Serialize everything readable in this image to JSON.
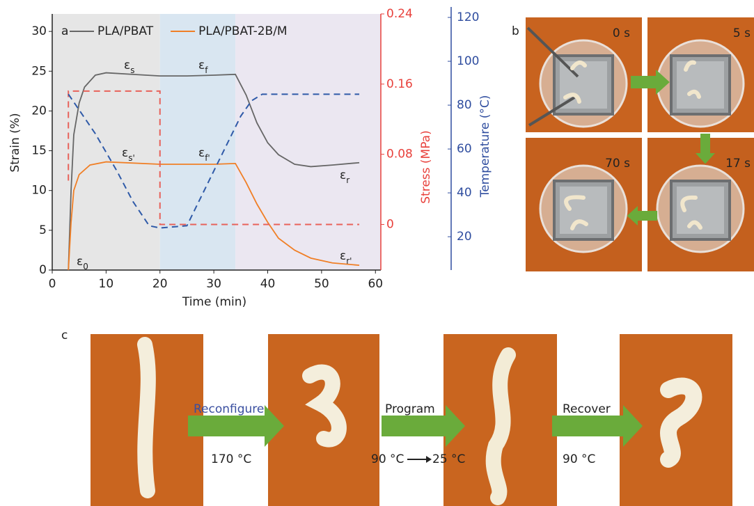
{
  "chart_data": {
    "type": "line",
    "panel_label": "a",
    "x_label": "Time (min)",
    "y_label": "Strain (%)",
    "y2_label": "Stress (MPa)",
    "y3_label": "Temperature (°C)",
    "xlim": [
      0,
      61
    ],
    "xticks": [
      0,
      10,
      20,
      30,
      40,
      50,
      60
    ],
    "ylim": [
      0,
      32.2
    ],
    "yticks": [
      0,
      5,
      10,
      15,
      20,
      25,
      30
    ],
    "y2lim": [
      -0.052,
      0.24
    ],
    "y2ticks": [
      0,
      0.08,
      0.16,
      0.24
    ],
    "y3lim": [
      4.8,
      121.6
    ],
    "y3ticks": [
      20,
      40,
      60,
      80,
      100,
      120
    ],
    "legend": "upper left",
    "regions": [
      {
        "start": 0,
        "end": 20,
        "color": "#e6e6e6"
      },
      {
        "start": 20,
        "end": 34,
        "color": "#d9e6f1"
      },
      {
        "start": 34,
        "end": 61,
        "color": "#ebe7f1"
      }
    ],
    "series": [
      {
        "name": "PLA/PBAT",
        "color": "#666666",
        "dash": false,
        "x": [
          3,
          3.5,
          4,
          5,
          6,
          8,
          10,
          15,
          20,
          25,
          30,
          34,
          36,
          38,
          40,
          42,
          45,
          48,
          52,
          57
        ],
        "values": [
          0,
          10,
          17,
          21,
          23,
          24.5,
          24.8,
          24.6,
          24.4,
          24.4,
          24.5,
          24.6,
          22,
          18.5,
          16,
          14.5,
          13.3,
          13,
          13.2,
          13.5
        ]
      },
      {
        "name": "PLA/PBAT-2B/M",
        "color": "#f07f26",
        "dash": false,
        "x": [
          3,
          3.5,
          4,
          5,
          7,
          10,
          20,
          30,
          34,
          36,
          38,
          40,
          42,
          45,
          48,
          52,
          57
        ],
        "values": [
          0,
          6,
          10,
          12,
          13.2,
          13.6,
          13.3,
          13.3,
          13.4,
          11,
          8.3,
          6,
          4,
          2.5,
          1.5,
          0.9,
          0.6
        ]
      },
      {
        "color": "#e8625a",
        "dash": true,
        "axis": "y2",
        "x": [
          3,
          3,
          20,
          20,
          57
        ],
        "values": [
          0.05,
          0.152,
          0.152,
          0,
          0
        ]
      },
      {
        "color": "#2f5aa8",
        "dash": true,
        "axis": "y3",
        "x": [
          3,
          8,
          12,
          15,
          18,
          20,
          25,
          28,
          32,
          35,
          37,
          39,
          57
        ],
        "values": [
          85,
          67,
          50,
          36,
          25,
          24,
          25,
          40,
          60,
          75,
          82,
          85,
          85
        ]
      }
    ],
    "annotations": [
      {
        "base": "ε",
        "sub": "s"
      },
      {
        "base": "ε",
        "sub": "f"
      },
      {
        "base": "ε",
        "sub": "s'"
      },
      {
        "base": "ε",
        "sub": "f'"
      },
      {
        "base": "ε",
        "sub": "r"
      },
      {
        "base": "ε",
        "sub": "r'"
      },
      {
        "base": "ε",
        "sub": "0"
      }
    ]
  },
  "panel_b": {
    "label": "b",
    "times": [
      "0 s",
      "5 s",
      "70 s",
      "17 s"
    ]
  },
  "panel_c": {
    "label": "c",
    "steps": [
      {
        "name": "Reconfigure",
        "temp": "170 °C"
      },
      {
        "name": "Program",
        "temp": "90 °C",
        "temp_end": "25 °C"
      },
      {
        "name": "Recover",
        "temp": "90 °C"
      }
    ]
  }
}
